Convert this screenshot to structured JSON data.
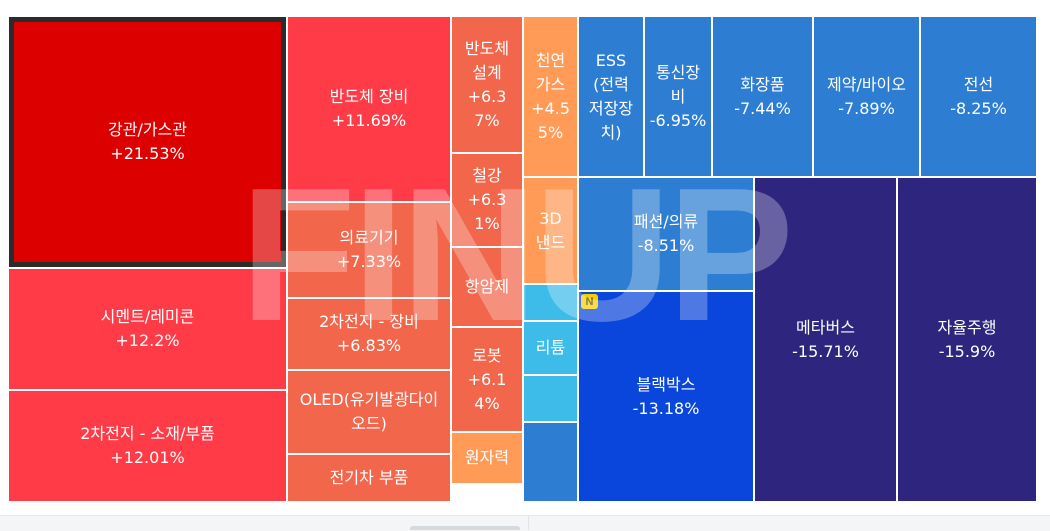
{
  "watermark": "FINUP",
  "badge": {
    "label": "N",
    "color": "#f5d000"
  },
  "chart_data": {
    "type": "treemap",
    "title": "",
    "items": [
      {
        "name": "강관/가스관",
        "change": "+21.53%",
        "value": 21.53,
        "color": "#dc0000",
        "selected": true
      },
      {
        "name": "반도체 장비",
        "change": "+11.69%",
        "value": 11.69,
        "color": "#ff3b47"
      },
      {
        "name": "의료기기",
        "change": "+7.33%",
        "value": 7.33,
        "color": "#f2664c"
      },
      {
        "name": "2차전지 - 장비",
        "change": "+6.83%",
        "value": 6.83,
        "color": "#f2664c"
      },
      {
        "name": "OLED(유기발광다이\n오드)",
        "change": "",
        "value": null,
        "color": "#f2664c"
      },
      {
        "name": "전기차 부품",
        "change": "",
        "value": null,
        "color": "#f2664c"
      },
      {
        "name": "시멘트/레미콘",
        "change": "+12.2%",
        "value": 12.2,
        "color": "#ff3b47"
      },
      {
        "name": "2차전지 - 소재/부품",
        "change": "+12.01%",
        "value": 12.01,
        "color": "#ff3b47"
      },
      {
        "name": "반도체\n설계",
        "change": "+6.3\n7%",
        "value": 6.37,
        "color": "#f2664c"
      },
      {
        "name": "철강",
        "change": "+6.3\n1%",
        "value": 6.31,
        "color": "#f2664c"
      },
      {
        "name": "항암제",
        "change": "",
        "value": null,
        "color": "#f2664c"
      },
      {
        "name": "로봇",
        "change": "+6.1\n4%",
        "value": 6.14,
        "color": "#f2664c"
      },
      {
        "name": "원자력",
        "change": "",
        "value": null,
        "color": "#ff9a57"
      },
      {
        "name": "천연\n가스",
        "change": "+4.5\n5%",
        "value": 4.55,
        "color": "#ff9a57"
      },
      {
        "name": "3D\n낸드",
        "change": "",
        "value": null,
        "color": "#ff9a57"
      },
      {
        "name": "",
        "change": "",
        "value": null,
        "color": "#3dbce9"
      },
      {
        "name": "리튬",
        "change": "",
        "value": null,
        "color": "#3dbce9"
      },
      {
        "name": "",
        "change": "",
        "value": null,
        "color": "#3dbce9"
      },
      {
        "name": "",
        "change": "",
        "value": null,
        "color": "#2d7ed3"
      },
      {
        "name": "ESS\n(전력\n저장장\n치)",
        "change": "",
        "value": null,
        "color": "#2d7ed3"
      },
      {
        "name": "통신장\n비",
        "change": "-6.95%",
        "value": -6.95,
        "color": "#2d7ed3"
      },
      {
        "name": "화장품",
        "change": "-7.44%",
        "value": -7.44,
        "color": "#2d7ed3"
      },
      {
        "name": "제약/바이오",
        "change": "-7.89%",
        "value": -7.89,
        "color": "#2d7ed3"
      },
      {
        "name": "전선",
        "change": "-8.25%",
        "value": -8.25,
        "color": "#2d7ed3"
      },
      {
        "name": "패션/의류",
        "change": "-8.51%",
        "value": -8.51,
        "color": "#2d7ed3"
      },
      {
        "name": "블랙박스",
        "change": "-13.18%",
        "value": -13.18,
        "color": "#0b46dc",
        "badge": true
      },
      {
        "name": "메타버스",
        "change": "-15.71%",
        "value": -15.71,
        "color": "#2e267e"
      },
      {
        "name": "자율주행",
        "change": "-15.9%",
        "value": -15.9,
        "color": "#2e267e"
      }
    ]
  }
}
